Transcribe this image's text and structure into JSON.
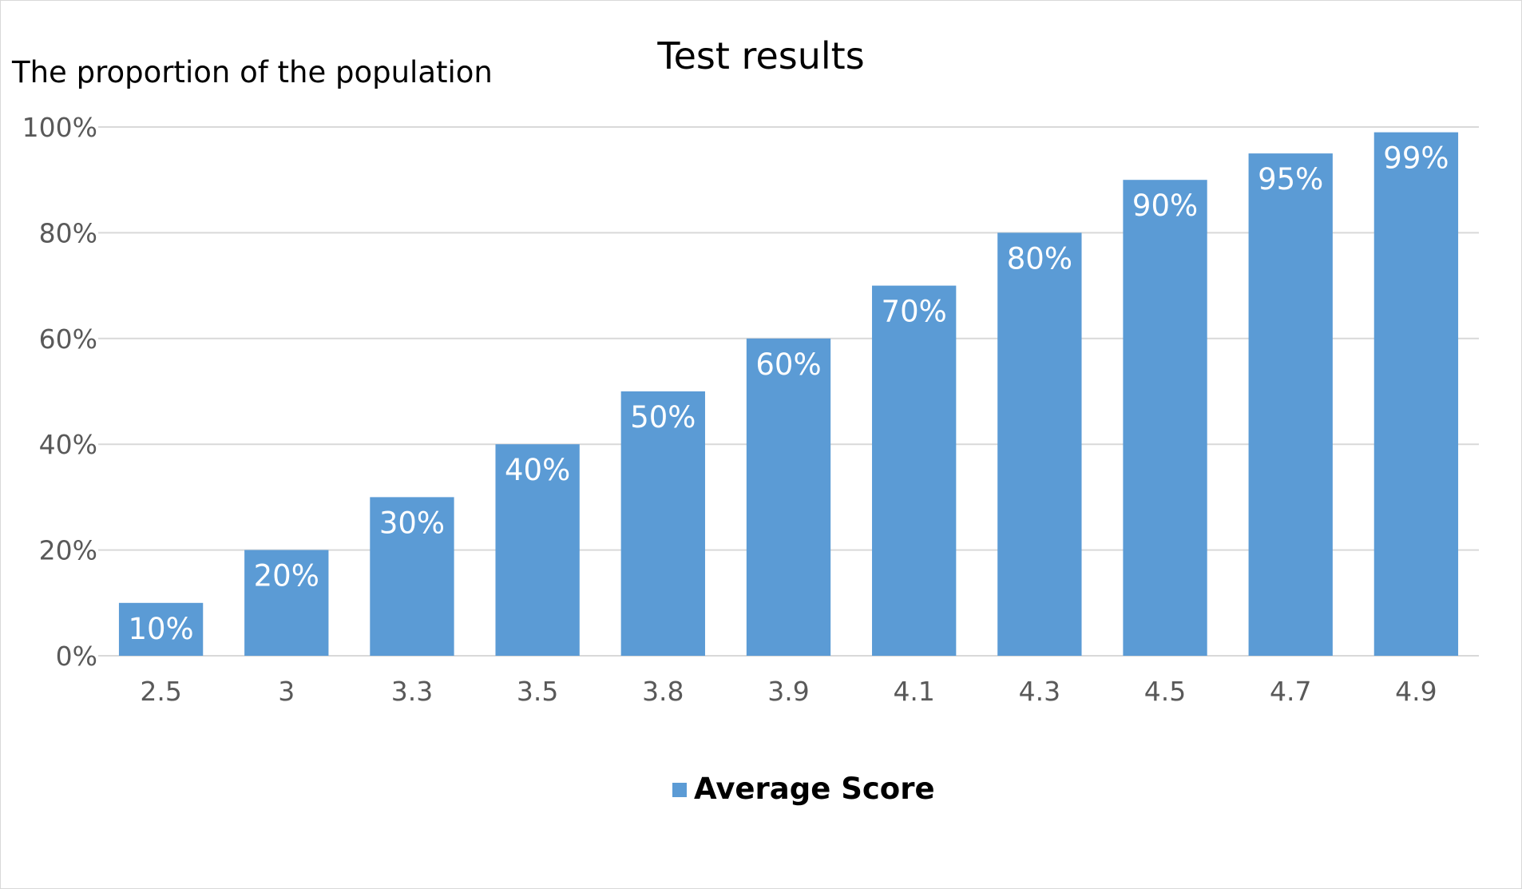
{
  "chart_data": {
    "type": "bar",
    "title": "Test results",
    "xlabel": "",
    "ylabel": "The proportion of the population",
    "categories": [
      "2.5",
      "3",
      "3.3",
      "3.5",
      "3.8",
      "3.9",
      "4.1",
      "4.3",
      "4.5",
      "4.7",
      "4.9"
    ],
    "series": [
      {
        "name": "Average Score",
        "values": [
          10,
          20,
          30,
          40,
          50,
          60,
          70,
          80,
          90,
          95,
          99
        ],
        "labels": [
          "10%",
          "20%",
          "30%",
          "40%",
          "50%",
          "60%",
          "70%",
          "80%",
          "90%",
          "95%",
          "99%"
        ],
        "color": "#5b9bd5"
      }
    ],
    "ylim": [
      0,
      100
    ],
    "yticks": [
      "0%",
      "20%",
      "40%",
      "60%",
      "80%",
      "100%"
    ],
    "grid": true,
    "gridColor": "#d9d9d9",
    "legend": "bottom"
  }
}
